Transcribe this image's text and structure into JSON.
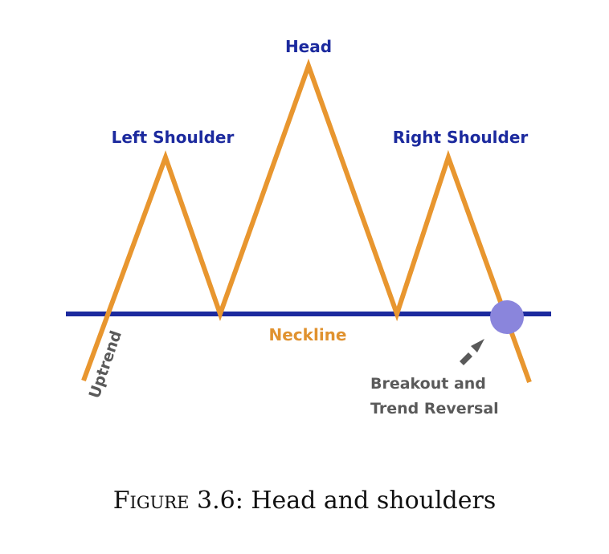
{
  "diagram": {
    "colors": {
      "price_line": "#e8962f",
      "neckline": "#1c2a9e",
      "label_blue": "#1c2a9e",
      "label_orange": "#e0922f",
      "breakout_marker": "#8a85dc",
      "arrow": "#595959",
      "annotation_gray": "#5a5a5a"
    },
    "labels": {
      "head": "Head",
      "left_shoulder": "Left Shoulder",
      "right_shoulder": "Right Shoulder",
      "neckline": "Neckline",
      "uptrend": "Uptrend",
      "breakout_line1": "Breakout and",
      "breakout_line2": "Trend Reversal"
    }
  },
  "caption": {
    "prefix": "Figure",
    "number": "3.6:",
    "text": "Head and shoulders"
  }
}
